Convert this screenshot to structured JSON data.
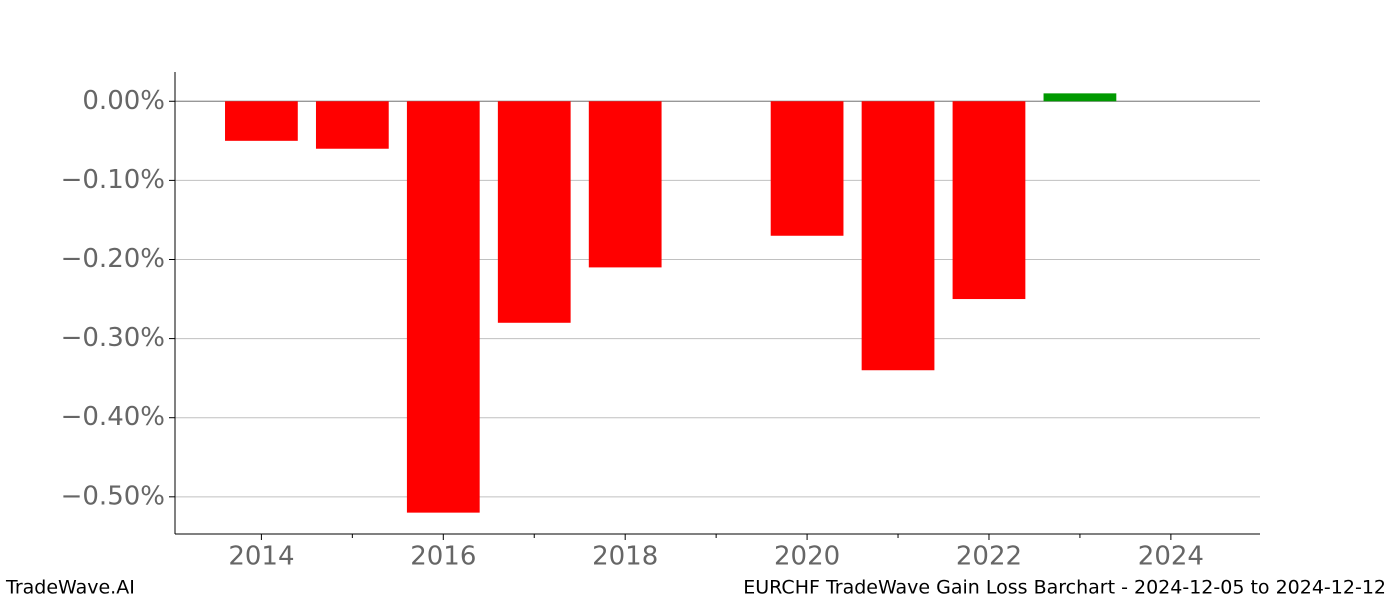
{
  "chart_data": {
    "type": "bar",
    "title": "EURCHF TradeWave Gain Loss Barchart - 2024-12-05 to 2024-12-12",
    "watermark": "TradeWave.AI",
    "x": [
      2014,
      2015,
      2016,
      2017,
      2018,
      2020,
      2021,
      2022,
      2023
    ],
    "values": [
      -0.05,
      -0.06,
      -0.52,
      -0.28,
      -0.21,
      -0.17,
      -0.34,
      -0.25,
      0.01
    ],
    "positive_color": "#009900",
    "negative_color": "#ff0000",
    "xlim": [
      2013.05,
      2024.98
    ],
    "xticks": [
      2014,
      2016,
      2018,
      2020,
      2022,
      2024
    ],
    "xminor_ticks": [
      2015,
      2017,
      2019,
      2021,
      2023
    ],
    "ylim": [
      -0.547,
      0.037
    ],
    "yticks": [
      {
        "value": 0,
        "label": "0.00%"
      },
      {
        "value": -0.1,
        "label": "−0.10%"
      },
      {
        "value": -0.2,
        "label": "−0.20%"
      },
      {
        "value": -0.3,
        "label": "−0.30%"
      },
      {
        "value": -0.4,
        "label": "−0.40%"
      },
      {
        "value": -0.5,
        "label": "−0.50%"
      }
    ],
    "grid": true
  }
}
